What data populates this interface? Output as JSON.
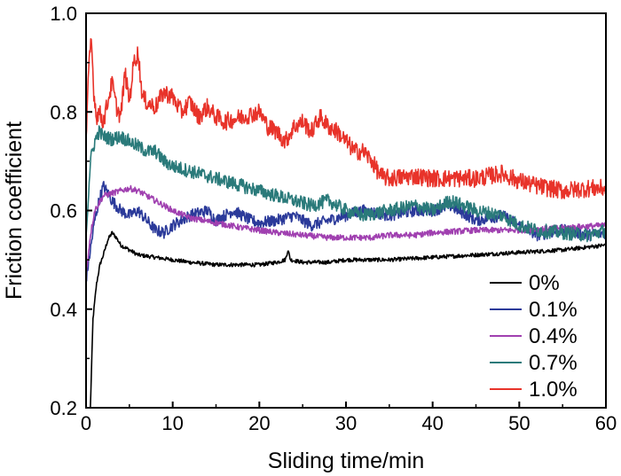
{
  "chart_data": {
    "type": "line",
    "xlabel": "Sliding time/min",
    "ylabel": "Friction coefficient",
    "xlim": [
      0,
      60
    ],
    "ylim": [
      0.2,
      1.0
    ],
    "x_ticks": [
      0,
      10,
      20,
      30,
      40,
      50,
      60
    ],
    "y_ticks": [
      0.2,
      0.4,
      0.6,
      0.8,
      1.0
    ],
    "x_tick_labels": [
      "0",
      "10",
      "20",
      "30",
      "40",
      "50",
      "60"
    ],
    "y_tick_labels": [
      "0.2",
      "0.4",
      "0.6",
      "0.8",
      "1.0"
    ],
    "grid": false,
    "legend_position": "lower-right",
    "series": [
      {
        "name": "0%",
        "color": "#000000",
        "x": [
          0.5,
          0.8,
          1.2,
          1.6,
          2.0,
          2.5,
          3.0,
          3.5,
          4.0,
          5,
          6,
          8,
          10,
          12,
          15,
          18,
          20,
          22,
          23,
          23.3,
          23.6,
          25,
          28,
          30,
          35,
          40,
          45,
          50,
          55,
          60
        ],
        "y": [
          0.2,
          0.38,
          0.45,
          0.49,
          0.51,
          0.54,
          0.555,
          0.545,
          0.53,
          0.52,
          0.51,
          0.505,
          0.5,
          0.495,
          0.49,
          0.49,
          0.49,
          0.495,
          0.5,
          0.52,
          0.5,
          0.495,
          0.495,
          0.5,
          0.5,
          0.505,
          0.51,
          0.515,
          0.52,
          0.53
        ]
      },
      {
        "name": "0.1%",
        "color": "#2b3a9a",
        "x": [
          0,
          0.5,
          1,
          1.5,
          2,
          3,
          4,
          5,
          6,
          7,
          8,
          9,
          10,
          12,
          14,
          15,
          17,
          19,
          20,
          22,
          24,
          26,
          28,
          30,
          32,
          35,
          38,
          40,
          42,
          45,
          48,
          50,
          52,
          55,
          58,
          60
        ],
        "y": [
          0.46,
          0.52,
          0.58,
          0.62,
          0.65,
          0.62,
          0.6,
          0.59,
          0.6,
          0.58,
          0.56,
          0.555,
          0.57,
          0.59,
          0.6,
          0.58,
          0.6,
          0.58,
          0.575,
          0.58,
          0.59,
          0.57,
          0.58,
          0.59,
          0.6,
          0.59,
          0.6,
          0.6,
          0.61,
          0.58,
          0.59,
          0.57,
          0.55,
          0.56,
          0.55,
          0.555
        ]
      },
      {
        "name": "0.4%",
        "color": "#a040b0",
        "x": [
          0,
          0.5,
          1,
          2,
          3,
          4,
          5,
          6,
          7,
          8,
          10,
          12,
          15,
          18,
          20,
          22,
          25,
          28,
          30,
          33,
          35,
          38,
          40,
          45,
          50,
          55,
          60
        ],
        "y": [
          0.47,
          0.55,
          0.6,
          0.63,
          0.635,
          0.64,
          0.645,
          0.64,
          0.63,
          0.62,
          0.6,
          0.585,
          0.575,
          0.565,
          0.56,
          0.555,
          0.55,
          0.545,
          0.545,
          0.545,
          0.55,
          0.55,
          0.555,
          0.56,
          0.56,
          0.565,
          0.57
        ]
      },
      {
        "name": "0.7%",
        "color": "#2a7a7a",
        "x": [
          0,
          0.5,
          1,
          1.5,
          2,
          3,
          4,
          5,
          6,
          7,
          8,
          9,
          10,
          12,
          14,
          16,
          18,
          20,
          22,
          24,
          26,
          28,
          30,
          32,
          35,
          38,
          40,
          42,
          45,
          48,
          50,
          52,
          55,
          58,
          60
        ],
        "y": [
          0.55,
          0.7,
          0.74,
          0.76,
          0.75,
          0.745,
          0.75,
          0.74,
          0.73,
          0.72,
          0.72,
          0.7,
          0.69,
          0.68,
          0.67,
          0.66,
          0.65,
          0.64,
          0.63,
          0.62,
          0.61,
          0.62,
          0.6,
          0.59,
          0.6,
          0.61,
          0.6,
          0.62,
          0.6,
          0.59,
          0.57,
          0.56,
          0.555,
          0.55,
          0.56
        ]
      },
      {
        "name": "1.0%",
        "color": "#e8332a",
        "x": [
          0,
          0.3,
          0.6,
          0.9,
          1.2,
          1.5,
          2,
          2.5,
          3,
          3.5,
          4,
          4.5,
          5,
          5.5,
          6,
          6.5,
          7,
          8,
          9,
          10,
          11,
          12,
          13,
          14,
          15,
          16,
          18,
          20,
          21,
          22,
          23,
          24,
          25,
          26,
          27,
          28,
          29,
          30,
          31,
          32,
          33,
          34,
          35,
          38,
          40,
          42,
          45,
          48,
          50,
          52,
          55,
          58,
          60
        ],
        "y": [
          0.74,
          0.88,
          0.95,
          0.84,
          0.79,
          0.8,
          0.78,
          0.82,
          0.86,
          0.81,
          0.79,
          0.88,
          0.82,
          0.9,
          0.92,
          0.83,
          0.82,
          0.81,
          0.84,
          0.83,
          0.8,
          0.82,
          0.79,
          0.81,
          0.79,
          0.78,
          0.79,
          0.8,
          0.77,
          0.76,
          0.74,
          0.77,
          0.78,
          0.76,
          0.79,
          0.77,
          0.76,
          0.74,
          0.72,
          0.72,
          0.7,
          0.67,
          0.665,
          0.67,
          0.665,
          0.665,
          0.665,
          0.675,
          0.66,
          0.65,
          0.64,
          0.645,
          0.645
        ]
      }
    ]
  }
}
